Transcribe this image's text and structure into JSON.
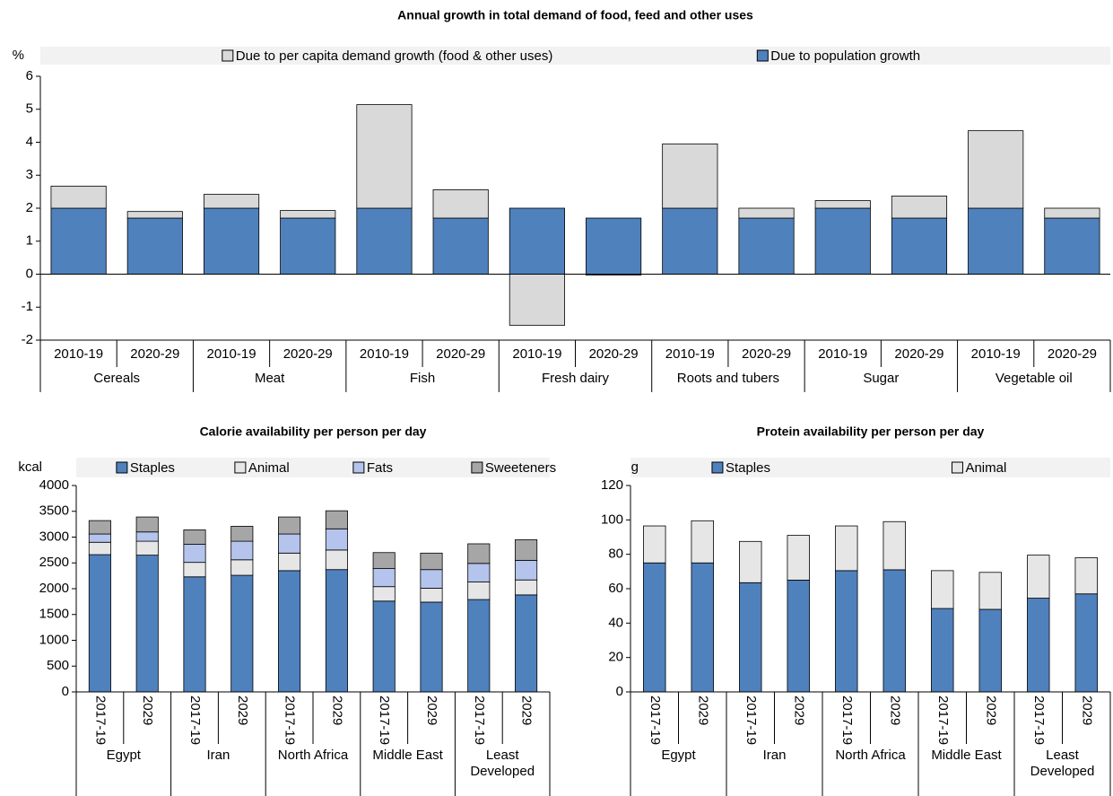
{
  "chart_data": [
    {
      "type": "bar",
      "stacked": true,
      "title": "Annual growth in total demand of food, feed and other uses",
      "y_unit": "%",
      "categories": [
        "2010-19",
        "2020-29",
        "2010-19",
        "2020-29",
        "2010-19",
        "2020-29",
        "2010-19",
        "2020-29",
        "2010-19",
        "2020-29",
        "2010-19",
        "2020-29",
        "2010-19",
        "2020-29"
      ],
      "groups": [
        "Cereals",
        "Meat",
        "Fish",
        "Fresh dairy",
        "Roots and tubers",
        "Sugar",
        "Vegetable oil"
      ],
      "series": [
        {
          "name": "Due to population growth",
          "color": "#4f81bd",
          "values": [
            2.0,
            1.7,
            2.0,
            1.7,
            2.0,
            1.7,
            2.0,
            1.7,
            2.0,
            1.7,
            2.0,
            1.7,
            2.0,
            1.7
          ]
        },
        {
          "name": "Due to per capita demand growth (food & other uses)",
          "color": "#d9d9d9",
          "values": [
            0.67,
            0.2,
            0.42,
            0.23,
            3.14,
            0.86,
            -1.55,
            -0.03,
            1.95,
            0.3,
            0.23,
            0.67,
            2.35,
            0.3
          ]
        }
      ],
      "legend_reversed": true,
      "ylim": [
        -2,
        6
      ],
      "yticks": [
        -2,
        -1,
        0,
        1,
        2,
        3,
        4,
        5,
        6
      ]
    },
    {
      "type": "bar",
      "stacked": true,
      "title": "Calorie availability per person per day",
      "y_unit": "kcal",
      "categories": [
        "2017-19",
        "2029",
        "2017-19",
        "2029",
        "2017-19",
        "2029",
        "2017-19",
        "2029",
        "2017-19",
        "2029"
      ],
      "groups": [
        "Egypt",
        "Iran",
        "North Africa",
        "Middle East",
        "Least Developed"
      ],
      "series": [
        {
          "name": "Staples",
          "color": "#4f81bd",
          "values": [
            2660,
            2650,
            2230,
            2260,
            2350,
            2370,
            1760,
            1740,
            1790,
            1880
          ]
        },
        {
          "name": "Animal",
          "color": "#e6e6e6",
          "values": [
            240,
            270,
            280,
            300,
            340,
            380,
            280,
            270,
            340,
            290
          ]
        },
        {
          "name": "Fats",
          "color": "#b4c4ec",
          "values": [
            160,
            180,
            350,
            360,
            370,
            410,
            350,
            360,
            360,
            380
          ]
        },
        {
          "name": "Sweeteners",
          "color": "#a6a6a6",
          "values": [
            260,
            290,
            280,
            290,
            330,
            350,
            310,
            320,
            380,
            400
          ]
        }
      ],
      "legend_reversed": false,
      "ylim": [
        0,
        4000
      ],
      "yticks": [
        0,
        500,
        1000,
        1500,
        2000,
        2500,
        3000,
        3500,
        4000
      ]
    },
    {
      "type": "bar",
      "stacked": true,
      "title": "Protein availability per person per day",
      "y_unit": "g",
      "categories": [
        "2017-19",
        "2029",
        "2017-19",
        "2029",
        "2017-19",
        "2029",
        "2017-19",
        "2029",
        "2017-19",
        "2029"
      ],
      "groups": [
        "Egypt",
        "Iran",
        "North Africa",
        "Middle East",
        "Least Developed"
      ],
      "series": [
        {
          "name": "Staples",
          "color": "#4f81bd",
          "values": [
            75,
            75,
            63.5,
            65,
            70.5,
            71,
            48.5,
            48,
            54.5,
            57
          ]
        },
        {
          "name": "Animal",
          "color": "#e6e6e6",
          "values": [
            21.5,
            24.5,
            24,
            26,
            26,
            28,
            22,
            21.5,
            25,
            21
          ]
        }
      ],
      "legend_reversed": false,
      "ylim": [
        0,
        120
      ],
      "yticks": [
        0,
        20,
        40,
        60,
        80,
        100,
        120
      ]
    }
  ]
}
